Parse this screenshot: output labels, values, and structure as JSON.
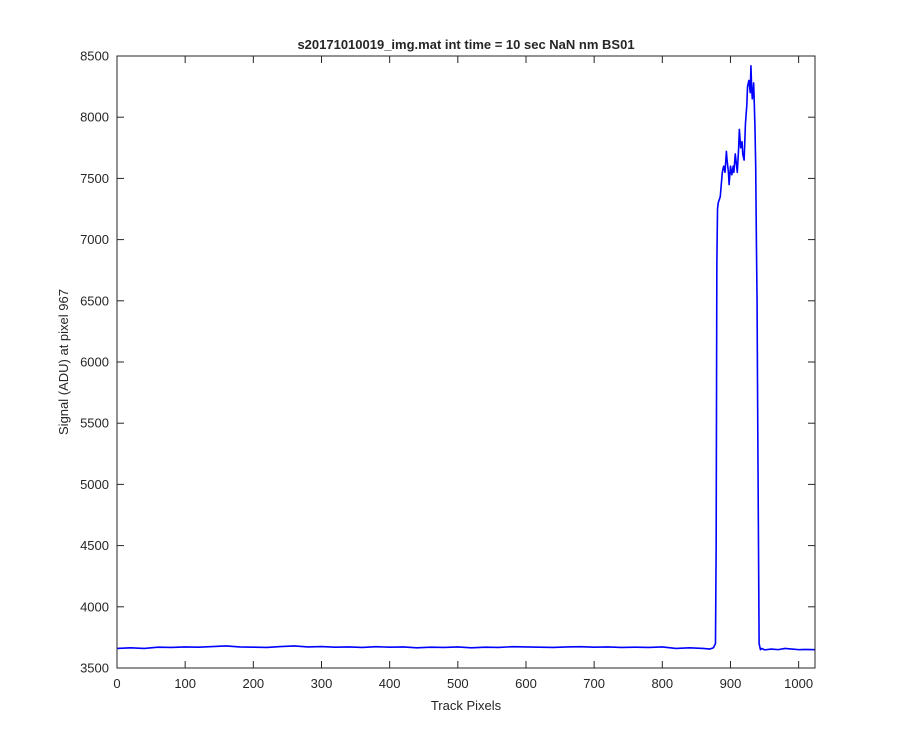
{
  "chart_data": {
    "type": "line",
    "title": "s20171010019_img.mat int time = 10 sec  NaN nm BS01",
    "xlabel": "Track Pixels",
    "ylabel": "Signal (ADU) at pixel 967",
    "xlim": [
      0,
      1024
    ],
    "ylim": [
      3500,
      8500
    ],
    "xticks": [
      0,
      100,
      200,
      300,
      400,
      500,
      600,
      700,
      800,
      900,
      1000
    ],
    "yticks": [
      3500,
      4000,
      4500,
      5000,
      5500,
      6000,
      6500,
      7000,
      7500,
      8000,
      8500
    ],
    "grid": false,
    "legend": "none",
    "series": [
      {
        "color": "#0000ff",
        "x": [
          0,
          20,
          40,
          60,
          80,
          100,
          120,
          140,
          160,
          180,
          200,
          220,
          240,
          260,
          280,
          300,
          320,
          340,
          360,
          380,
          400,
          420,
          440,
          460,
          480,
          500,
          520,
          540,
          560,
          580,
          600,
          620,
          640,
          660,
          680,
          700,
          720,
          740,
          760,
          780,
          800,
          820,
          840,
          860,
          870,
          875,
          878,
          879,
          880,
          881,
          882,
          885,
          888,
          890,
          892,
          894,
          895,
          897,
          898,
          900,
          902,
          904,
          905,
          907,
          908,
          910,
          912,
          913,
          915,
          917,
          918,
          920,
          922,
          924,
          925,
          927,
          929,
          930,
          931,
          932,
          933,
          934,
          935,
          936,
          937,
          938,
          939,
          940,
          942,
          944,
          946,
          950,
          960,
          970,
          980,
          990,
          1000,
          1010,
          1024
        ],
        "y": [
          3660,
          3665,
          3660,
          3670,
          3668,
          3672,
          3670,
          3675,
          3680,
          3672,
          3670,
          3668,
          3675,
          3680,
          3672,
          3675,
          3670,
          3672,
          3668,
          3674,
          3670,
          3672,
          3665,
          3670,
          3668,
          3672,
          3665,
          3670,
          3668,
          3674,
          3672,
          3670,
          3668,
          3672,
          3674,
          3670,
          3672,
          3668,
          3670,
          3668,
          3672,
          3660,
          3665,
          3660,
          3655,
          3665,
          3700,
          4500,
          6800,
          7250,
          7300,
          7350,
          7550,
          7600,
          7550,
          7720,
          7650,
          7550,
          7450,
          7600,
          7530,
          7600,
          7550,
          7700,
          7650,
          7550,
          7750,
          7900,
          7750,
          7800,
          7700,
          7650,
          7950,
          8100,
          8250,
          8300,
          8200,
          8420,
          8250,
          8150,
          8200,
          8280,
          8100,
          7900,
          7600,
          7000,
          6500,
          5500,
          3700,
          3650,
          3660,
          3648,
          3655,
          3650,
          3660,
          3655,
          3650,
          3652,
          3650
        ]
      }
    ]
  }
}
